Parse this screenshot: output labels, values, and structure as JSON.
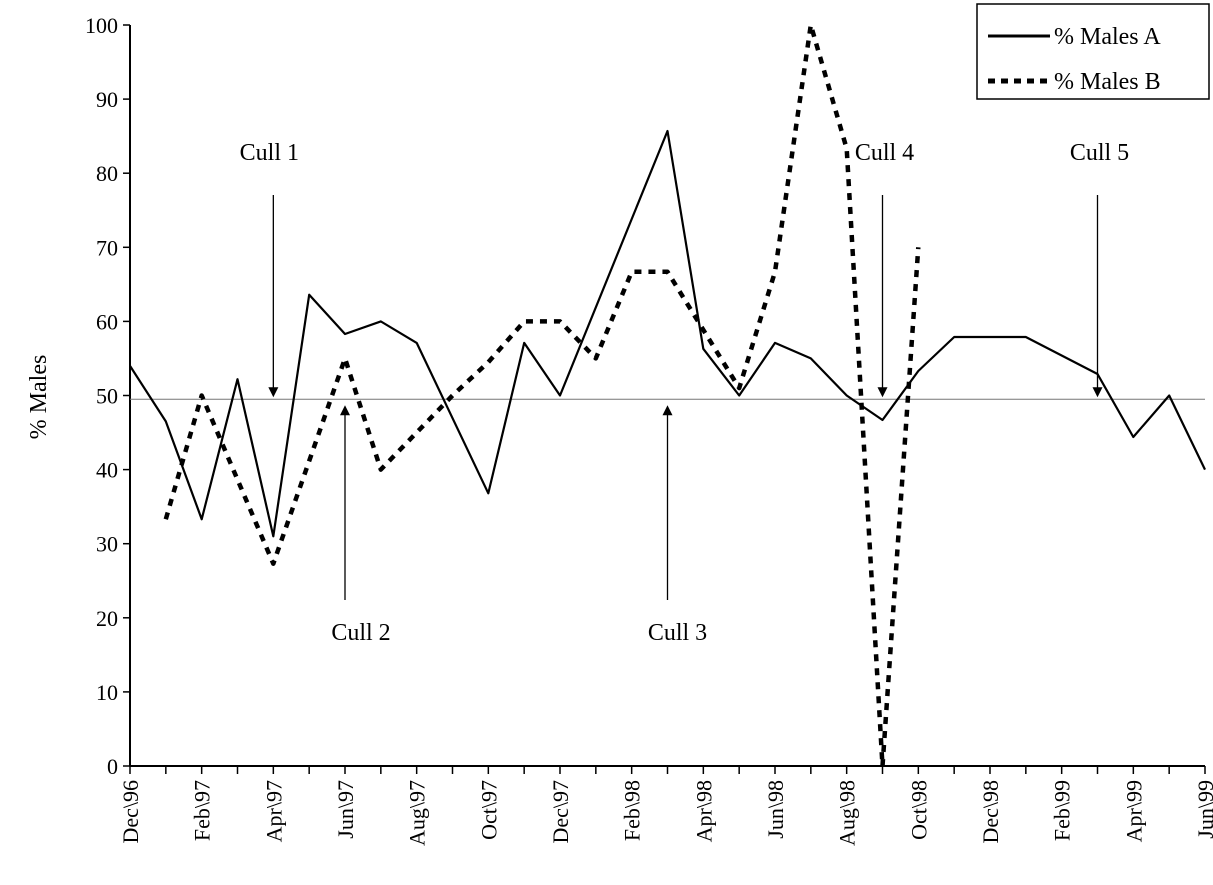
{
  "chart_data": {
    "type": "line",
    "ylabel": "% Males",
    "xlabel": "",
    "ylim": [
      0,
      100
    ],
    "yticks": [
      0,
      10,
      20,
      30,
      40,
      50,
      60,
      70,
      80,
      90,
      100
    ],
    "xticks": [
      "Dec\\96",
      "Feb\\97",
      "Apr\\97",
      "Jun\\97",
      "Aug\\97",
      "Oct\\97",
      "Dec\\97",
      "Feb\\98",
      "Apr\\98",
      "Jun\\98",
      "Aug\\98",
      "Oct\\98",
      "Dec\\98",
      "Feb\\99",
      "Apr\\99",
      "Jun\\99"
    ],
    "x_start": "1996-12",
    "x_end": "1999-06",
    "reference_line": 49.5,
    "legend_position": "top-right",
    "series": [
      {
        "name": "% Males A",
        "style": "solid",
        "color": "#000000",
        "points": [
          [
            "1996-12",
            54
          ],
          [
            "1997-01",
            46.5
          ],
          [
            "1997-02",
            33.3
          ],
          [
            "1997-03",
            52.2
          ],
          [
            "1997-04",
            31
          ],
          [
            "1997-05",
            63.6
          ],
          [
            "1997-06",
            58.3
          ],
          [
            "1997-07",
            60
          ],
          [
            "1997-08",
            57.1
          ],
          [
            "1997-10",
            36.8
          ],
          [
            "1997-11",
            57.1
          ],
          [
            "1997-12",
            50
          ],
          [
            "1998-03",
            85.7
          ],
          [
            "1998-04",
            56.3
          ],
          [
            "1998-05",
            50
          ],
          [
            "1998-06",
            57.1
          ],
          [
            "1998-07",
            55
          ],
          [
            "1998-08",
            50
          ],
          [
            "1998-09",
            46.7
          ],
          [
            "1998-10",
            53.3
          ],
          [
            "1998-11",
            57.9
          ],
          [
            "1999-01",
            57.9
          ],
          [
            "1999-03",
            52.9
          ],
          [
            "1999-04",
            44.4
          ],
          [
            "1999-05",
            50
          ],
          [
            "1999-06",
            40
          ]
        ]
      },
      {
        "name": "% Males B",
        "style": "dotted",
        "color": "#000000",
        "points": [
          [
            "1997-01",
            33.3
          ],
          [
            "1997-02",
            50
          ],
          [
            "1997-04",
            27.3
          ],
          [
            "1997-06",
            55
          ],
          [
            "1997-07",
            40
          ],
          [
            "1997-09",
            50
          ],
          [
            "1997-10",
            54.5
          ],
          [
            "1997-11",
            60
          ],
          [
            "1997-12",
            60
          ],
          [
            "1998-01",
            55
          ],
          [
            "1998-02",
            66.7
          ],
          [
            "1998-03",
            66.7
          ],
          [
            "1998-05",
            51
          ],
          [
            "1998-06",
            66.7
          ],
          [
            "1998-07",
            100
          ],
          [
            "1998-08",
            83.3
          ],
          [
            "1998-09",
            0
          ],
          [
            "1998-10",
            70
          ]
        ]
      }
    ],
    "annotations": [
      {
        "text": "Cull 1",
        "date": "1997-04",
        "value": 49.5,
        "direction": "down"
      },
      {
        "text": "Cull 2",
        "date": "1997-06",
        "value": 49.5,
        "direction": "up"
      },
      {
        "text": "Cull 3",
        "date": "1998-03",
        "value": 49.5,
        "direction": "up"
      },
      {
        "text": "Cull 4",
        "date": "1998-09",
        "value": 49.5,
        "direction": "down"
      },
      {
        "text": "Cull 5",
        "date": "1999-03",
        "value": 49.5,
        "direction": "down"
      }
    ]
  }
}
